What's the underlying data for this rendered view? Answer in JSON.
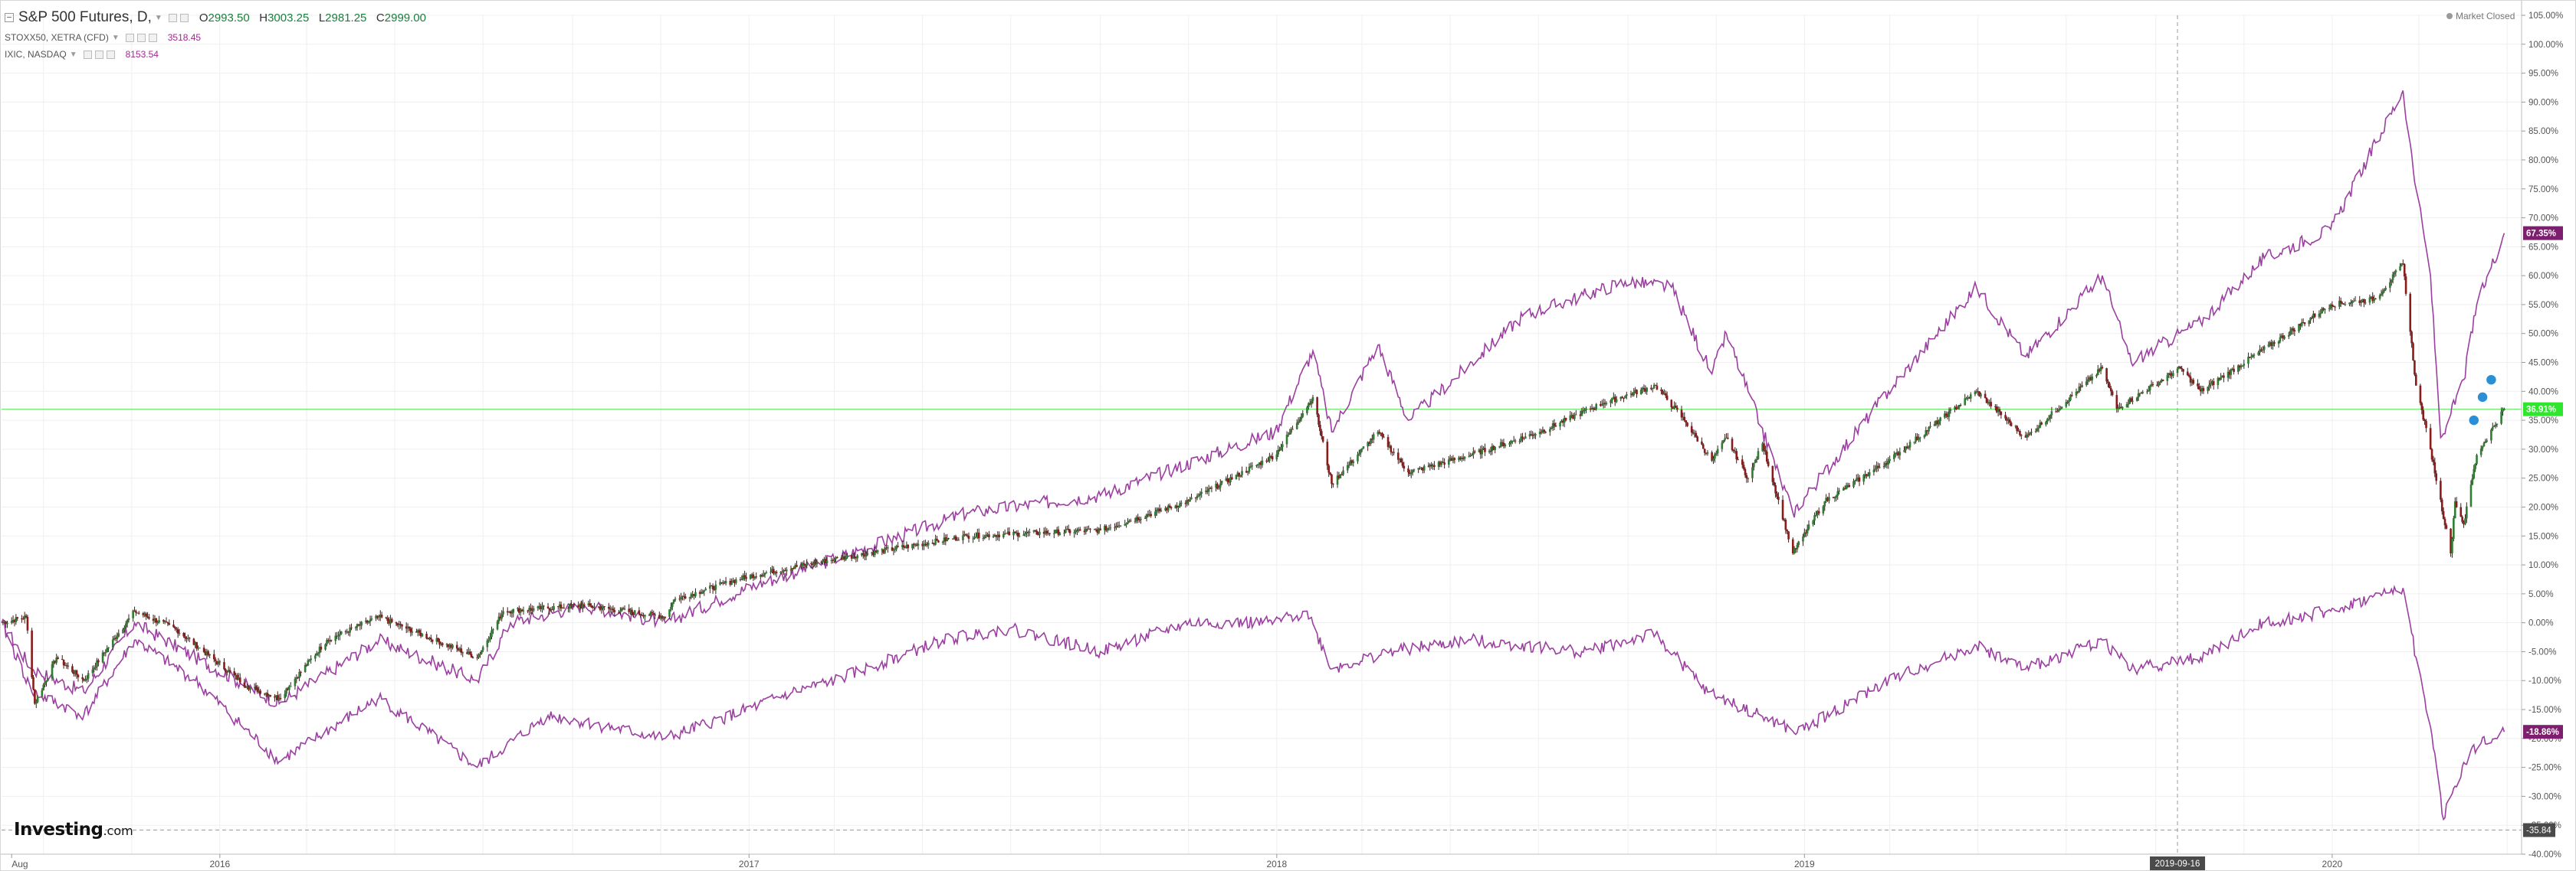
{
  "legend": {
    "main": {
      "symbol": "S&P 500 Futures, D,",
      "o_label": "O",
      "o": "2993.50",
      "h_label": "H",
      "h": "3003.25",
      "l_label": "L",
      "l": "2981.25",
      "c_label": "C",
      "c": "2999.00"
    },
    "s1": {
      "symbol": "STOXX50, XETRA (CFD)",
      "value": "3518.45"
    },
    "s2": {
      "symbol": "IXIC, NASDAQ",
      "value": "8153.54"
    }
  },
  "market_status": "Market Closed",
  "logo": {
    "main": "Investing",
    "sub": ".com"
  },
  "colors": {
    "up": "#2e7d32",
    "down": "#8b1a1a",
    "wick": "#3a2020",
    "compare": "#9b3fa0",
    "hline": "#2ee62e",
    "grid": "#efefef",
    "axis_text": "#555555"
  },
  "chart_data": {
    "type": "line",
    "x_axis_type": "date",
    "y_unit": "%",
    "xlim": [
      "2015-08-03",
      "2020-05-11"
    ],
    "ylim": [
      -40,
      105
    ],
    "grid": true,
    "y_ticks": [
      "105.00%",
      "100.00%",
      "95.00%",
      "90.00%",
      "85.00%",
      "80.00%",
      "75.00%",
      "70.00%",
      "65.00%",
      "60.00%",
      "55.00%",
      "50.00%",
      "45.00%",
      "40.00%",
      "35.00%",
      "30.00%",
      "25.00%",
      "20.00%",
      "15.00%",
      "10.00%",
      "5.00%",
      "0.00%",
      "-5.00%",
      "-10.00%",
      "-15.00%",
      "-20.00%",
      "-25.00%",
      "-30.00%",
      "-35.00%",
      "-40.00%"
    ],
    "x_ticks": [
      {
        "date": "2015-08-10",
        "label": "Aug"
      },
      {
        "date": "2016-01-01",
        "label": "2016"
      },
      {
        "date": "2017-01-01",
        "label": "2017"
      },
      {
        "date": "2018-01-01",
        "label": "2018"
      },
      {
        "date": "2019-01-01",
        "label": "2019"
      },
      {
        "date": "2020-01-01",
        "label": "2020"
      }
    ],
    "crosshair": {
      "date": "2019-09-16",
      "label": "2019-09-16",
      "y_label": "-35.84",
      "y": -35.84
    },
    "horizontal_line": {
      "y": 36.91
    },
    "last_labels": [
      {
        "value": "67.35%",
        "y": 67.35,
        "color": "#7d1f6e"
      },
      {
        "value": "36.91%",
        "y": 36.91,
        "color": "#2ee62e"
      },
      {
        "value": "-18.86%",
        "y": -18.86,
        "color": "#7d1f6e"
      }
    ],
    "series": [
      {
        "type": "candlestick",
        "points": [
          [
            "2015-08-03",
            0
          ],
          [
            "2015-08-20",
            1
          ],
          [
            "2015-08-26",
            -14
          ],
          [
            "2015-09-10",
            -6
          ],
          [
            "2015-09-29",
            -10
          ],
          [
            "2015-11-03",
            2
          ],
          [
            "2015-12-01",
            -1
          ],
          [
            "2016-01-20",
            -11
          ],
          [
            "2016-02-11",
            -13
          ],
          [
            "2016-03-15",
            -3
          ],
          [
            "2016-04-20",
            1
          ],
          [
            "2016-06-27",
            -6
          ],
          [
            "2016-07-15",
            2
          ],
          [
            "2016-09-09",
            3
          ],
          [
            "2016-11-04",
            1
          ],
          [
            "2016-11-10",
            4
          ],
          [
            "2016-12-31",
            8
          ],
          [
            "2017-03-01",
            11
          ],
          [
            "2017-06-01",
            15
          ],
          [
            "2017-09-01",
            16
          ],
          [
            "2017-11-01",
            21
          ],
          [
            "2017-12-31",
            29
          ],
          [
            "2018-01-26",
            39
          ],
          [
            "2018-02-08",
            24
          ],
          [
            "2018-03-12",
            33
          ],
          [
            "2018-04-02",
            26
          ],
          [
            "2018-05-15",
            29
          ],
          [
            "2018-07-02",
            33
          ],
          [
            "2018-08-15",
            38
          ],
          [
            "2018-09-20",
            41
          ],
          [
            "2018-10-10",
            35
          ],
          [
            "2018-10-29",
            28
          ],
          [
            "2018-11-08",
            32
          ],
          [
            "2018-11-23",
            25
          ],
          [
            "2018-12-03",
            31
          ],
          [
            "2018-12-24",
            12
          ],
          [
            "2019-01-15",
            21
          ],
          [
            "2019-02-28",
            28
          ],
          [
            "2019-04-30",
            40
          ],
          [
            "2019-06-03",
            32
          ],
          [
            "2019-07-26",
            44
          ],
          [
            "2019-08-05",
            37
          ],
          [
            "2019-09-18",
            44
          ],
          [
            "2019-10-02",
            40
          ],
          [
            "2019-12-31",
            55
          ],
          [
            "2020-01-31",
            56
          ],
          [
            "2020-02-19",
            62
          ],
          [
            "2020-02-28",
            41
          ],
          [
            "2020-03-09",
            30
          ],
          [
            "2020-03-23",
            12
          ],
          [
            "2020-03-26",
            21
          ],
          [
            "2020-04-01",
            17
          ],
          [
            "2020-04-10",
            29
          ],
          [
            "2020-04-29",
            37
          ]
        ]
      },
      {
        "type": "line",
        "points": [
          [
            "2015-08-03",
            0
          ],
          [
            "2015-08-24",
            -8
          ],
          [
            "2015-09-29",
            -12
          ],
          [
            "2015-11-03",
            0
          ],
          [
            "2015-12-15",
            -6
          ],
          [
            "2016-02-11",
            -14
          ],
          [
            "2016-04-20",
            -3
          ],
          [
            "2016-06-27",
            -10
          ],
          [
            "2016-07-20",
            0
          ],
          [
            "2016-09-09",
            3
          ],
          [
            "2016-11-04",
            0
          ],
          [
            "2016-12-31",
            6
          ],
          [
            "2017-03-01",
            11
          ],
          [
            "2017-06-01",
            19
          ],
          [
            "2017-09-01",
            22
          ],
          [
            "2017-12-31",
            33
          ],
          [
            "2018-01-26",
            47
          ],
          [
            "2018-02-08",
            33
          ],
          [
            "2018-03-12",
            48
          ],
          [
            "2018-04-02",
            35
          ],
          [
            "2018-06-20",
            53
          ],
          [
            "2018-08-30",
            59
          ],
          [
            "2018-10-01",
            58
          ],
          [
            "2018-10-29",
            43
          ],
          [
            "2018-11-08",
            50
          ],
          [
            "2018-12-24",
            19
          ],
          [
            "2019-02-28",
            40
          ],
          [
            "2019-04-30",
            58
          ],
          [
            "2019-06-03",
            46
          ],
          [
            "2019-07-26",
            60
          ],
          [
            "2019-08-15",
            45
          ],
          [
            "2019-10-02",
            52
          ],
          [
            "2019-11-15",
            63
          ],
          [
            "2019-12-31",
            68
          ],
          [
            "2020-02-19",
            92
          ],
          [
            "2020-02-28",
            75
          ],
          [
            "2020-03-09",
            60
          ],
          [
            "2020-03-16",
            32
          ],
          [
            "2020-03-23",
            36
          ],
          [
            "2020-04-01",
            42
          ],
          [
            "2020-04-10",
            55
          ],
          [
            "2020-04-29",
            67.35
          ]
        ]
      },
      {
        "type": "line",
        "points": [
          [
            "2015-08-03",
            0
          ],
          [
            "2015-08-24",
            -12
          ],
          [
            "2015-09-29",
            -16
          ],
          [
            "2015-11-03",
            -3
          ],
          [
            "2015-12-15",
            -10
          ],
          [
            "2016-02-11",
            -24
          ],
          [
            "2016-04-20",
            -13
          ],
          [
            "2016-06-27",
            -25
          ],
          [
            "2016-08-15",
            -16
          ],
          [
            "2016-11-04",
            -20
          ],
          [
            "2016-12-31",
            -15
          ],
          [
            "2017-01-31",
            -12
          ],
          [
            "2017-03-01",
            -10
          ],
          [
            "2017-05-15",
            -3
          ],
          [
            "2017-06-30",
            -1
          ],
          [
            "2017-09-01",
            -5
          ],
          [
            "2017-11-01",
            0
          ],
          [
            "2017-12-31",
            0
          ],
          [
            "2018-01-22",
            2
          ],
          [
            "2018-02-08",
            -8
          ],
          [
            "2018-03-20",
            -5
          ],
          [
            "2018-05-15",
            -3
          ],
          [
            "2018-07-31",
            -5
          ],
          [
            "2018-09-20",
            -2
          ],
          [
            "2018-10-26",
            -12
          ],
          [
            "2018-12-27",
            -19
          ],
          [
            "2019-02-28",
            -10
          ],
          [
            "2019-04-30",
            -4
          ],
          [
            "2019-06-03",
            -8
          ],
          [
            "2019-07-26",
            -3
          ],
          [
            "2019-08-15",
            -8
          ],
          [
            "2019-10-02",
            -6
          ],
          [
            "2019-11-15",
            0
          ],
          [
            "2019-12-31",
            2
          ],
          [
            "2020-02-19",
            6
          ],
          [
            "2020-02-28",
            -6
          ],
          [
            "2020-03-09",
            -18
          ],
          [
            "2020-03-18",
            -34
          ],
          [
            "2020-03-23",
            -30
          ],
          [
            "2020-04-06",
            -22
          ],
          [
            "2020-04-29",
            -18.86
          ]
        ]
      }
    ]
  }
}
